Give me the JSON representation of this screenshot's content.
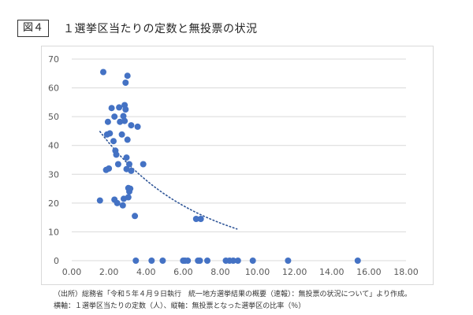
{
  "figure_label": "図４",
  "title": "１選挙区当たりの定数と無投票の状況",
  "source_note": "（出所）総務省「令和５年４月９日執行　統一地方選挙結果の概要（速報）：無投票の状況について」より作成。",
  "axes_note": "横軸：１選挙区当たりの定数（人）、縦軸：無投票となった選挙区の比率（％）",
  "colors": {
    "point": "#4472C4",
    "trend": "#2F5597",
    "grid": "#d9d9d9"
  },
  "chart_data": {
    "type": "scatter",
    "title": "",
    "xlabel": "",
    "ylabel": "",
    "xlim": [
      0,
      18
    ],
    "ylim": [
      0,
      70
    ],
    "x_ticks": [
      "0.00",
      "2.00",
      "4.00",
      "6.00",
      "8.00",
      "10.00",
      "12.00",
      "14.00",
      "16.00",
      "18.00"
    ],
    "y_ticks": [
      "0",
      "10",
      "20",
      "30",
      "40",
      "50",
      "60",
      "70"
    ],
    "grid": "horizontal",
    "trendline": "exponential",
    "points": [
      [
        1.52,
        20.9
      ],
      [
        1.7,
        65.5
      ],
      [
        1.85,
        31.5
      ],
      [
        1.9,
        43.8
      ],
      [
        1.95,
        48.2
      ],
      [
        2.0,
        32.0
      ],
      [
        2.05,
        44.2
      ],
      [
        2.15,
        53.0
      ],
      [
        2.25,
        41.5
      ],
      [
        2.3,
        50.0
      ],
      [
        2.3,
        21.2
      ],
      [
        2.35,
        38.2
      ],
      [
        2.4,
        36.8
      ],
      [
        2.45,
        20.0
      ],
      [
        2.5,
        33.5
      ],
      [
        2.55,
        53.2
      ],
      [
        2.6,
        48.2
      ],
      [
        2.7,
        43.8
      ],
      [
        2.75,
        19.2
      ],
      [
        2.78,
        50.2
      ],
      [
        2.8,
        21.5
      ],
      [
        2.85,
        54.0
      ],
      [
        2.85,
        48.5
      ],
      [
        2.9,
        61.8
      ],
      [
        2.9,
        52.5
      ],
      [
        2.95,
        35.8
      ],
      [
        2.95,
        31.8
      ],
      [
        3.0,
        42.0
      ],
      [
        3.0,
        64.2
      ],
      [
        3.05,
        25.2
      ],
      [
        3.05,
        22.0
      ],
      [
        3.1,
        33.5
      ],
      [
        3.1,
        24.0
      ],
      [
        3.15,
        25.0
      ],
      [
        3.2,
        31.2
      ],
      [
        3.2,
        47.0
      ],
      [
        3.4,
        15.5
      ],
      [
        3.55,
        46.5
      ],
      [
        3.85,
        33.5
      ],
      [
        6.7,
        14.5
      ],
      [
        6.95,
        14.5
      ],
      [
        3.45,
        0
      ],
      [
        4.3,
        0
      ],
      [
        4.9,
        0
      ],
      [
        6.0,
        0
      ],
      [
        6.1,
        0
      ],
      [
        6.25,
        0
      ],
      [
        6.8,
        0
      ],
      [
        6.9,
        0
      ],
      [
        7.3,
        0
      ],
      [
        8.3,
        0
      ],
      [
        8.5,
        0
      ],
      [
        8.7,
        0
      ],
      [
        8.95,
        0
      ],
      [
        9.75,
        0
      ],
      [
        11.65,
        0
      ],
      [
        15.4,
        0
      ]
    ]
  }
}
